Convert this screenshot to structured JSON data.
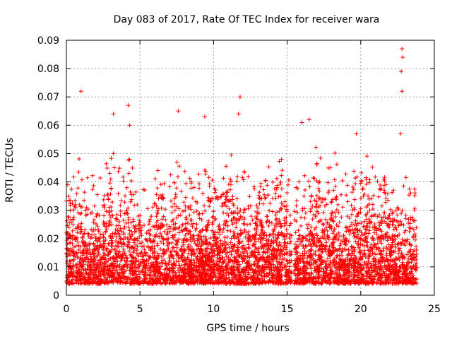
{
  "chart_data": {
    "type": "scatter",
    "title": "Day 083 of 2017, Rate Of TEC Index for receiver wara",
    "xlabel": "GPS time / hours",
    "ylabel": "ROTI / TECUs",
    "xlim": [
      0,
      25
    ],
    "ylim": [
      0,
      0.09
    ],
    "x_ticks": [
      0,
      5,
      10,
      15,
      20,
      25
    ],
    "y_ticks": [
      0,
      0.01,
      0.02,
      0.03,
      0.04,
      0.05,
      0.06,
      0.07,
      0.08,
      0.09
    ],
    "grid": true,
    "marker": "+",
    "color": "#ff0000",
    "notable_points": [
      {
        "x": 1.0,
        "y": 0.072
      },
      {
        "x": 3.2,
        "y": 0.064
      },
      {
        "x": 4.2,
        "y": 0.067
      },
      {
        "x": 4.3,
        "y": 0.06
      },
      {
        "x": 7.6,
        "y": 0.065
      },
      {
        "x": 9.4,
        "y": 0.063
      },
      {
        "x": 11.8,
        "y": 0.07
      },
      {
        "x": 11.7,
        "y": 0.064
      },
      {
        "x": 16.5,
        "y": 0.062
      },
      {
        "x": 16.0,
        "y": 0.061
      },
      {
        "x": 19.7,
        "y": 0.057
      },
      {
        "x": 22.8,
        "y": 0.087
      },
      {
        "x": 22.85,
        "y": 0.084
      },
      {
        "x": 22.75,
        "y": 0.079
      },
      {
        "x": 22.8,
        "y": 0.072
      },
      {
        "x": 22.7,
        "y": 0.057
      }
    ],
    "segments": [
      {
        "x_start": 0.0,
        "x_end": 15.3,
        "typical_range": [
          0.004,
          0.025
        ],
        "max_range": [
          0.03,
          0.055
        ]
      },
      {
        "x_start": 15.5,
        "x_end": 23.8,
        "typical_range": [
          0.004,
          0.025
        ],
        "max_range": [
          0.03,
          0.055
        ]
      }
    ],
    "gaps": [
      [
        15.3,
        15.5
      ]
    ]
  },
  "colors": {
    "marker": "#ff0000",
    "grid": "#a0a0a0",
    "axis": "#000000"
  }
}
